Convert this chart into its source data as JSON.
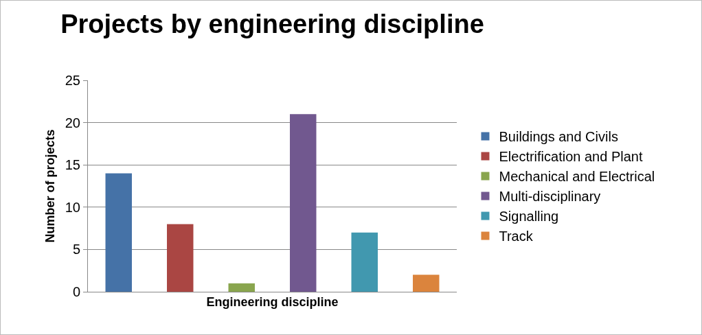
{
  "chart_data": {
    "type": "bar",
    "title": "Projects by engineering discipline",
    "xlabel": "Engineering discipline",
    "ylabel": "Number of projects",
    "categories": [
      null,
      null,
      null,
      null,
      null,
      null
    ],
    "series": [
      {
        "name": "Buildings and Civils",
        "color": "#4572a7",
        "values": [
          14,
          null,
          null,
          null,
          null,
          null
        ]
      },
      {
        "name": "Electrification and Plant",
        "color": "#aa4643",
        "values": [
          null,
          8,
          null,
          null,
          null,
          null
        ]
      },
      {
        "name": "Mechanical and Electrical",
        "color": "#89a54e",
        "values": [
          null,
          null,
          1,
          null,
          null,
          null
        ]
      },
      {
        "name": "Multi-disciplinary",
        "color": "#71588f",
        "values": [
          null,
          null,
          null,
          21,
          null,
          null
        ]
      },
      {
        "name": "Signalling",
        "color": "#4198af",
        "values": [
          null,
          null,
          null,
          null,
          7,
          null
        ]
      },
      {
        "name": "Track",
        "color": "#db843d",
        "values": [
          null,
          null,
          null,
          null,
          null,
          2
        ]
      }
    ],
    "ylim": [
      0,
      25
    ],
    "yticks": [
      0,
      5,
      10,
      15,
      20,
      25
    ],
    "grid": "y",
    "legend": "right"
  }
}
